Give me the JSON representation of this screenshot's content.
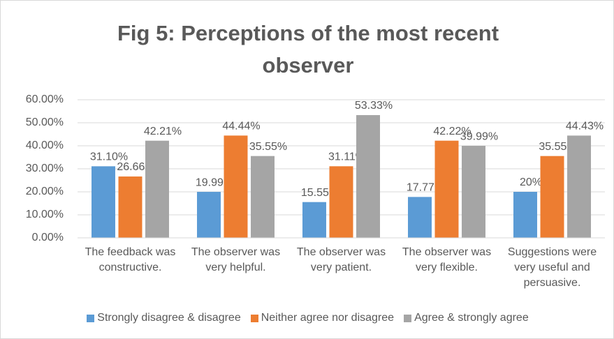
{
  "chart_data": {
    "type": "bar",
    "title": "Fig 5: Perceptions of the most recent observer",
    "categories": [
      "The feedback was constructive.",
      "The observer was very helpful.",
      "The observer was very patient.",
      "The observer was very flexible.",
      "Suggestions were very useful and persuasive."
    ],
    "series": [
      {
        "name": "Strongly disagree & disagree",
        "color": "#5b9bd5",
        "values": [
          31.1,
          19.99,
          15.55,
          17.77,
          20
        ],
        "value_labels": [
          "31.10%",
          "19.99%",
          "15.55%",
          "17.77%",
          "20%"
        ]
      },
      {
        "name": "Neither agree nor disagree",
        "color": "#ed7d31",
        "values": [
          26.66,
          44.44,
          31.11,
          42.22,
          35.55
        ],
        "value_labels": [
          "26.66%",
          "44.44%",
          "31.11%",
          "42.22%",
          "35.55%"
        ]
      },
      {
        "name": "Agree & strongly agree",
        "color": "#a5a5a5",
        "values": [
          42.21,
          35.55,
          53.33,
          39.99,
          44.43
        ],
        "value_labels": [
          "42.21%",
          "35.55%",
          "53.33%",
          "39.99%",
          "44.43%"
        ]
      }
    ],
    "ylim": [
      0,
      60
    ],
    "yticks": [
      {
        "value": 0,
        "label": "0.00%"
      },
      {
        "value": 10,
        "label": "10.00%"
      },
      {
        "value": 20,
        "label": "20.00%"
      },
      {
        "value": 30,
        "label": "30.00%"
      },
      {
        "value": 40,
        "label": "40.00%"
      },
      {
        "value": 50,
        "label": "50.00%"
      },
      {
        "value": 60,
        "label": "60.00%"
      }
    ],
    "grid": true,
    "legend": "bottom"
  }
}
